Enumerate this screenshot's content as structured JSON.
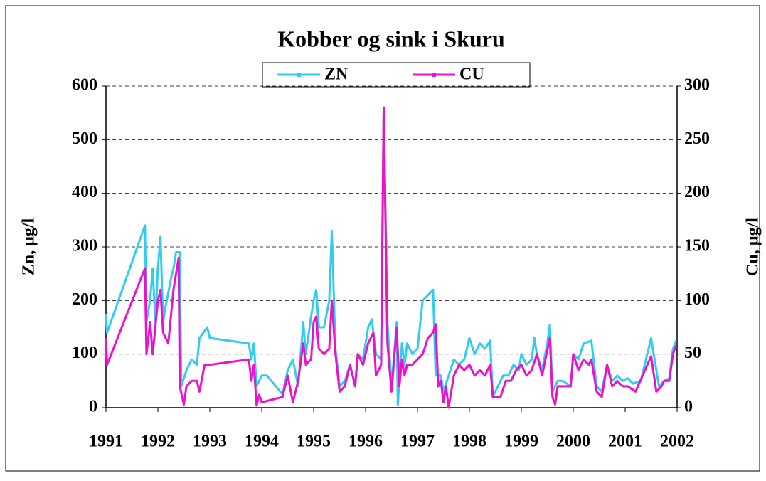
{
  "chart_data": {
    "type": "line",
    "title": "Kobber og sink i Skuru",
    "y_label": "Zn, µg/l",
    "y2_label": "Cu, µg/l",
    "xlim": [
      1991,
      2002
    ],
    "xticks": [
      1991,
      1992,
      1993,
      1994,
      1995,
      1996,
      1997,
      1998,
      1999,
      2000,
      2001,
      2002
    ],
    "ylim": [
      0,
      600
    ],
    "yticks": [
      0,
      100,
      200,
      300,
      400,
      500,
      600
    ],
    "y2lim": [
      0,
      300
    ],
    "y2ticks": [
      0,
      50,
      100,
      150,
      200,
      250,
      300
    ],
    "grid": true,
    "legend": "top",
    "series": [
      {
        "name": "ZN",
        "color": "#33ccee",
        "x": [
          1991.0,
          1991.02,
          1991.75,
          1991.78,
          1991.85,
          1991.9,
          1991.95,
          1992.0,
          1992.05,
          1992.1,
          1992.15,
          1992.25,
          1992.3,
          1992.35,
          1992.42,
          1992.45,
          1992.55,
          1992.65,
          1992.75,
          1992.8,
          1992.95,
          1993.0,
          1993.75,
          1993.8,
          1993.85,
          1993.9,
          1994.0,
          1994.1,
          1994.4,
          1994.5,
          1994.6,
          1994.7,
          1994.8,
          1994.85,
          1994.95,
          1995.0,
          1995.05,
          1995.1,
          1995.2,
          1995.3,
          1995.35,
          1995.42,
          1995.5,
          1995.6,
          1995.7,
          1995.8,
          1995.85,
          1995.95,
          1996.05,
          1996.12,
          1996.2,
          1996.3,
          1996.35,
          1996.42,
          1996.5,
          1996.6,
          1996.62,
          1996.7,
          1996.75,
          1996.8,
          1996.9,
          1997.0,
          1997.1,
          1997.2,
          1997.3,
          1997.35,
          1997.45,
          1997.5,
          1997.6,
          1997.7,
          1997.8,
          1997.9,
          1998.0,
          1998.1,
          1998.2,
          1998.3,
          1998.4,
          1998.45,
          1998.55,
          1998.65,
          1998.75,
          1998.85,
          1998.95,
          1999.0,
          1999.1,
          1999.2,
          1999.25,
          1999.3,
          1999.4,
          1999.5,
          1999.55,
          1999.6,
          1999.7,
          1999.8,
          1999.95,
          2000.0,
          2000.1,
          2000.2,
          2000.35,
          2000.45,
          2000.55,
          2000.65,
          2000.75,
          2000.85,
          2000.95,
          2001.05,
          2001.15,
          2001.3,
          2001.5,
          2001.65,
          2001.75,
          2001.85,
          2001.92,
          2001.98
        ],
        "values": [
          175,
          140,
          340,
          160,
          200,
          260,
          160,
          260,
          320,
          160,
          190,
          240,
          260,
          290,
          290,
          40,
          70,
          90,
          80,
          130,
          150,
          130,
          120,
          90,
          120,
          40,
          60,
          60,
          25,
          70,
          90,
          40,
          160,
          100,
          170,
          200,
          220,
          150,
          150,
          200,
          330,
          110,
          40,
          50,
          80,
          40,
          100,
          90,
          150,
          165,
          100,
          90,
          560,
          160,
          40,
          160,
          5,
          120,
          80,
          120,
          100,
          110,
          200,
          210,
          220,
          60,
          60,
          30,
          60,
          90,
          80,
          90,
          130,
          100,
          120,
          110,
          125,
          20,
          40,
          60,
          60,
          80,
          70,
          100,
          80,
          90,
          130,
          100,
          70,
          120,
          155,
          30,
          50,
          50,
          40,
          100,
          90,
          120,
          125,
          40,
          30,
          80,
          50,
          60,
          50,
          55,
          45,
          50,
          130,
          40,
          50,
          55,
          110,
          125
        ]
      },
      {
        "name": "CU",
        "color": "#ee11cc",
        "axis": "y2",
        "x": [
          1991.0,
          1991.02,
          1991.75,
          1991.78,
          1991.85,
          1991.9,
          1992.0,
          1992.05,
          1992.1,
          1992.2,
          1992.3,
          1992.4,
          1992.42,
          1992.5,
          1992.55,
          1992.65,
          1992.75,
          1992.8,
          1992.9,
          1993.0,
          1993.75,
          1993.8,
          1993.85,
          1993.9,
          1993.95,
          1994.0,
          1994.4,
          1994.5,
          1994.6,
          1994.7,
          1994.8,
          1994.85,
          1994.95,
          1995.0,
          1995.05,
          1995.1,
          1995.2,
          1995.3,
          1995.35,
          1995.42,
          1995.5,
          1995.6,
          1995.7,
          1995.8,
          1995.85,
          1995.95,
          1996.05,
          1996.15,
          1996.2,
          1996.3,
          1996.35,
          1996.42,
          1996.5,
          1996.6,
          1996.65,
          1996.7,
          1996.75,
          1996.8,
          1996.9,
          1997.0,
          1997.1,
          1997.2,
          1997.3,
          1997.35,
          1997.4,
          1997.45,
          1997.5,
          1997.55,
          1997.6,
          1997.7,
          1997.8,
          1997.9,
          1998.0,
          1998.1,
          1998.2,
          1998.3,
          1998.4,
          1998.45,
          1998.6,
          1998.7,
          1998.8,
          1998.9,
          1999.0,
          1999.1,
          1999.2,
          1999.3,
          1999.4,
          1999.55,
          1999.6,
          1999.65,
          1999.7,
          1999.8,
          1999.95,
          2000.0,
          2000.1,
          2000.2,
          2000.3,
          2000.35,
          2000.45,
          2000.55,
          2000.65,
          2000.75,
          2000.85,
          2000.95,
          2001.05,
          2001.2,
          2001.5,
          2001.6,
          2001.7,
          2001.75,
          2001.85,
          2001.92,
          2001.98
        ],
        "values": [
          65,
          40,
          130,
          50,
          80,
          50,
          100,
          110,
          70,
          60,
          110,
          140,
          20,
          3,
          20,
          25,
          25,
          15,
          40,
          40,
          45,
          25,
          40,
          2,
          12,
          5,
          10,
          30,
          5,
          25,
          60,
          40,
          45,
          80,
          85,
          55,
          50,
          55,
          100,
          50,
          15,
          20,
          40,
          20,
          50,
          40,
          60,
          70,
          30,
          40,
          280,
          60,
          15,
          75,
          20,
          45,
          30,
          40,
          40,
          45,
          50,
          65,
          70,
          78,
          20,
          25,
          5,
          20,
          0,
          30,
          40,
          35,
          40,
          30,
          35,
          30,
          40,
          10,
          10,
          25,
          25,
          35,
          40,
          30,
          35,
          50,
          30,
          65,
          10,
          3,
          20,
          20,
          20,
          50,
          35,
          45,
          40,
          45,
          15,
          10,
          40,
          20,
          25,
          20,
          20,
          15,
          48,
          15,
          20,
          25,
          25,
          50,
          58
        ]
      }
    ]
  }
}
